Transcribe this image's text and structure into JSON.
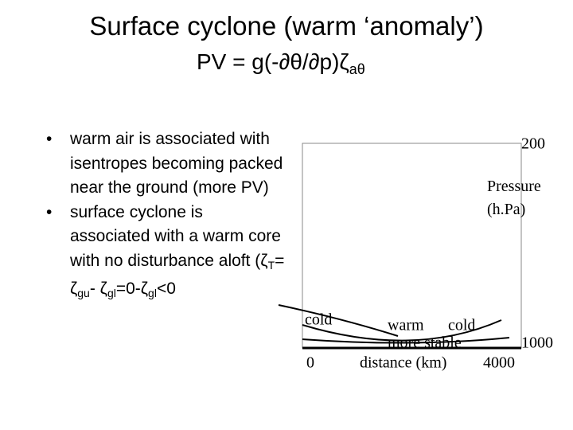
{
  "header": {
    "title": "Surface cyclone (warm ‘anomaly’)",
    "formula": {
      "main": "PV = g(-∂θ/∂p)ζ",
      "sub": "aθ"
    }
  },
  "bullets": [
    [
      {
        "text": "warm air is associated with isentropes becoming packed near the ground (more PV)"
      }
    ],
    [
      {
        "text": "surface cyclone is associated with a warm core with no disturbance aloft (ζ"
      },
      {
        "sub": "T"
      },
      {
        "text": "= ζ"
      },
      {
        "sub": "gu"
      },
      {
        "text": "- ζ"
      },
      {
        "sub": "gl"
      },
      {
        "text": "=0-ζ"
      },
      {
        "sub": "gl"
      },
      {
        "text": "<0"
      }
    ]
  ],
  "diagram": {
    "top_pressure": "200",
    "axis_label": "Pressure (h.Pa)",
    "bottom_pressure": "1000",
    "cold_left": "cold",
    "warm": "warm",
    "cold_right": "cold",
    "stable": "more stable",
    "x_start": "0",
    "x_label": "distance (km)",
    "x_end": "4000"
  }
}
